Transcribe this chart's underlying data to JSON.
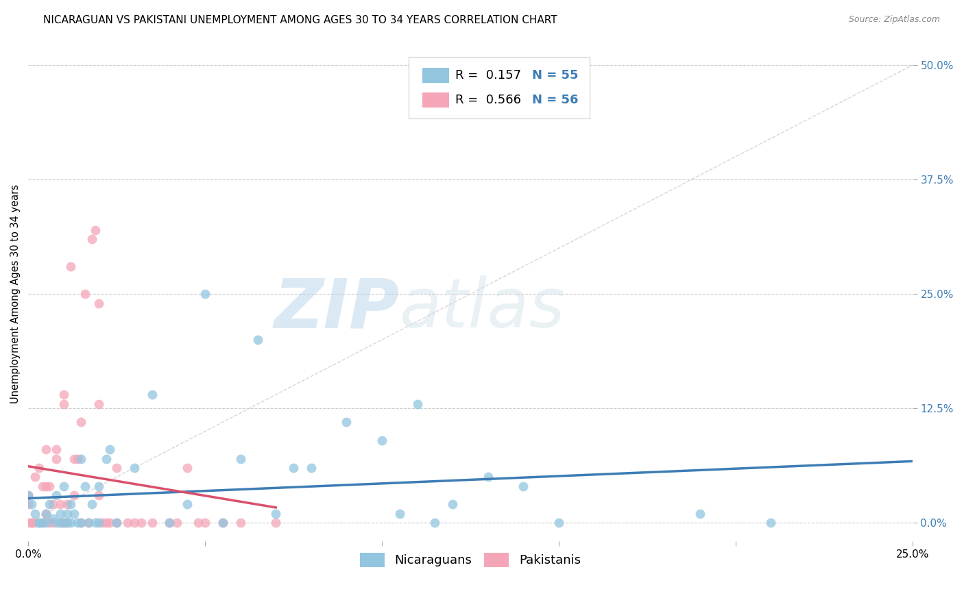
{
  "title": "NICARAGUAN VS PAKISTANI UNEMPLOYMENT AMONG AGES 30 TO 34 YEARS CORRELATION CHART",
  "source": "Source: ZipAtlas.com",
  "ylabel_label": "Unemployment Among Ages 30 to 34 years",
  "legend_blue_R": "0.157",
  "legend_blue_N": "55",
  "legend_pink_R": "0.566",
  "legend_pink_N": "56",
  "legend_label_blue": "Nicaraguans",
  "legend_label_pink": "Pakistanis",
  "blue_color": "#92c5de",
  "pink_color": "#f4a6b8",
  "blue_line_color": "#3d7db5",
  "pink_line_color": "#d9506a",
  "xlim": [
    0.0,
    0.25
  ],
  "ylim": [
    -0.02,
    0.52
  ],
  "ytick_vals": [
    0.0,
    0.125,
    0.25,
    0.375,
    0.5
  ],
  "ytick_labels": [
    "0.0%",
    "12.5%",
    "25.0%",
    "37.5%",
    "50.0%"
  ],
  "blue_scatter_x": [
    0.0,
    0.001,
    0.002,
    0.003,
    0.003,
    0.004,
    0.005,
    0.005,
    0.006,
    0.007,
    0.008,
    0.008,
    0.009,
    0.009,
    0.01,
    0.01,
    0.011,
    0.011,
    0.012,
    0.012,
    0.013,
    0.014,
    0.015,
    0.015,
    0.016,
    0.017,
    0.018,
    0.019,
    0.02,
    0.02,
    0.022,
    0.023,
    0.025,
    0.03,
    0.035,
    0.04,
    0.045,
    0.05,
    0.055,
    0.06,
    0.065,
    0.07,
    0.075,
    0.08,
    0.09,
    0.1,
    0.105,
    0.11,
    0.115,
    0.12,
    0.13,
    0.14,
    0.15,
    0.19,
    0.21
  ],
  "blue_scatter_y": [
    0.03,
    0.02,
    0.01,
    0.0,
    0.0,
    0.0,
    0.01,
    0.0,
    0.02,
    0.005,
    0.03,
    0.0,
    0.01,
    0.0,
    0.04,
    0.0,
    0.01,
    0.0,
    0.02,
    0.0,
    0.01,
    0.0,
    0.07,
    0.0,
    0.04,
    0.0,
    0.02,
    0.0,
    0.04,
    0.0,
    0.07,
    0.08,
    0.0,
    0.06,
    0.14,
    0.0,
    0.02,
    0.25,
    0.0,
    0.07,
    0.2,
    0.01,
    0.06,
    0.06,
    0.11,
    0.09,
    0.01,
    0.13,
    0.0,
    0.02,
    0.05,
    0.04,
    0.0,
    0.01,
    0.0
  ],
  "pink_scatter_x": [
    0.0,
    0.0,
    0.0,
    0.001,
    0.001,
    0.002,
    0.002,
    0.003,
    0.004,
    0.004,
    0.005,
    0.005,
    0.005,
    0.006,
    0.006,
    0.007,
    0.007,
    0.008,
    0.008,
    0.009,
    0.009,
    0.01,
    0.01,
    0.01,
    0.011,
    0.011,
    0.012,
    0.013,
    0.013,
    0.014,
    0.015,
    0.015,
    0.016,
    0.017,
    0.018,
    0.019,
    0.02,
    0.02,
    0.02,
    0.021,
    0.022,
    0.023,
    0.025,
    0.025,
    0.028,
    0.03,
    0.032,
    0.035,
    0.04,
    0.042,
    0.045,
    0.048,
    0.05,
    0.055,
    0.06,
    0.07
  ],
  "pink_scatter_y": [
    0.03,
    0.02,
    0.0,
    0.0,
    0.0,
    0.05,
    0.0,
    0.06,
    0.0,
    0.04,
    0.01,
    0.04,
    0.08,
    0.04,
    0.0,
    0.02,
    0.0,
    0.07,
    0.08,
    0.0,
    0.02,
    0.0,
    0.13,
    0.14,
    0.0,
    0.02,
    0.28,
    0.03,
    0.07,
    0.07,
    0.0,
    0.11,
    0.25,
    0.0,
    0.31,
    0.32,
    0.03,
    0.24,
    0.13,
    0.0,
    0.0,
    0.0,
    0.06,
    0.0,
    0.0,
    0.0,
    0.0,
    0.0,
    0.0,
    0.0,
    0.06,
    0.0,
    0.0,
    0.0,
    0.0,
    0.0
  ],
  "title_fontsize": 11,
  "axis_label_fontsize": 10.5,
  "tick_fontsize": 11,
  "legend_fontsize": 13,
  "marker_size": 100
}
